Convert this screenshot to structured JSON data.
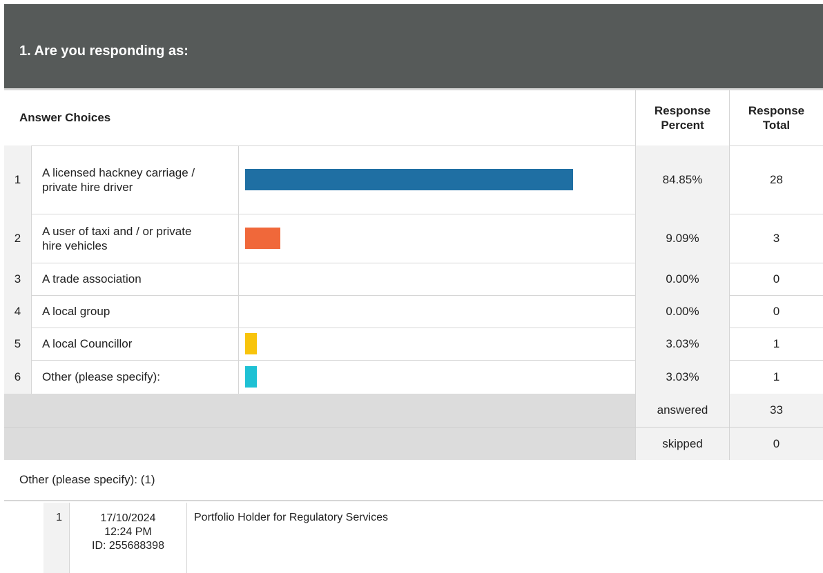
{
  "question": {
    "title": "1. Are you responding as:"
  },
  "header": {
    "answer_choices": "Answer Choices",
    "response_percent": "Response Percent",
    "response_total": "Response Total"
  },
  "chart_data": {
    "type": "bar",
    "categories": [
      "A licensed hackney carriage / private hire driver",
      "A user of taxi and / or private hire vehicles",
      "A trade association",
      "A local group",
      "A local Councillor",
      "Other (please specify):"
    ],
    "values": [
      84.85,
      9.09,
      0.0,
      0.0,
      3.03,
      3.03
    ],
    "colors": [
      "#1f6fa3",
      "#f0683a",
      null,
      null,
      "#f8c40c",
      "#1ec1d4"
    ]
  },
  "rows": [
    {
      "num": "1",
      "answer": "A licensed hackney carriage / private hire driver",
      "percent": "84.85%",
      "total": "28",
      "value": 84.85,
      "color": "#1f6fa3"
    },
    {
      "num": "2",
      "answer": "A user of taxi and / or private hire vehicles",
      "percent": "9.09%",
      "total": "3",
      "value": 9.09,
      "color": "#f0683a"
    },
    {
      "num": "3",
      "answer": "A trade association",
      "percent": "0.00%",
      "total": "0",
      "value": 0,
      "color": null
    },
    {
      "num": "4",
      "answer": "A local group",
      "percent": "0.00%",
      "total": "0",
      "value": 0,
      "color": null
    },
    {
      "num": "5",
      "answer": "A local Councillor",
      "percent": "3.03%",
      "total": "1",
      "value": 3.03,
      "color": "#f8c40c"
    },
    {
      "num": "6",
      "answer": "Other (please specify):",
      "percent": "3.03%",
      "total": "1",
      "value": 3.03,
      "color": "#1ec1d4"
    }
  ],
  "summary": {
    "answered_label": "answered",
    "answered_value": "33",
    "skipped_label": "skipped",
    "skipped_value": "0"
  },
  "other": {
    "label": "Other (please specify): (1)",
    "responses": [
      {
        "num": "1",
        "date": "17/10/2024",
        "time": "12:24 PM",
        "id": "ID: 255688398",
        "text": "Portfolio Holder for Regulatory Services"
      }
    ]
  }
}
